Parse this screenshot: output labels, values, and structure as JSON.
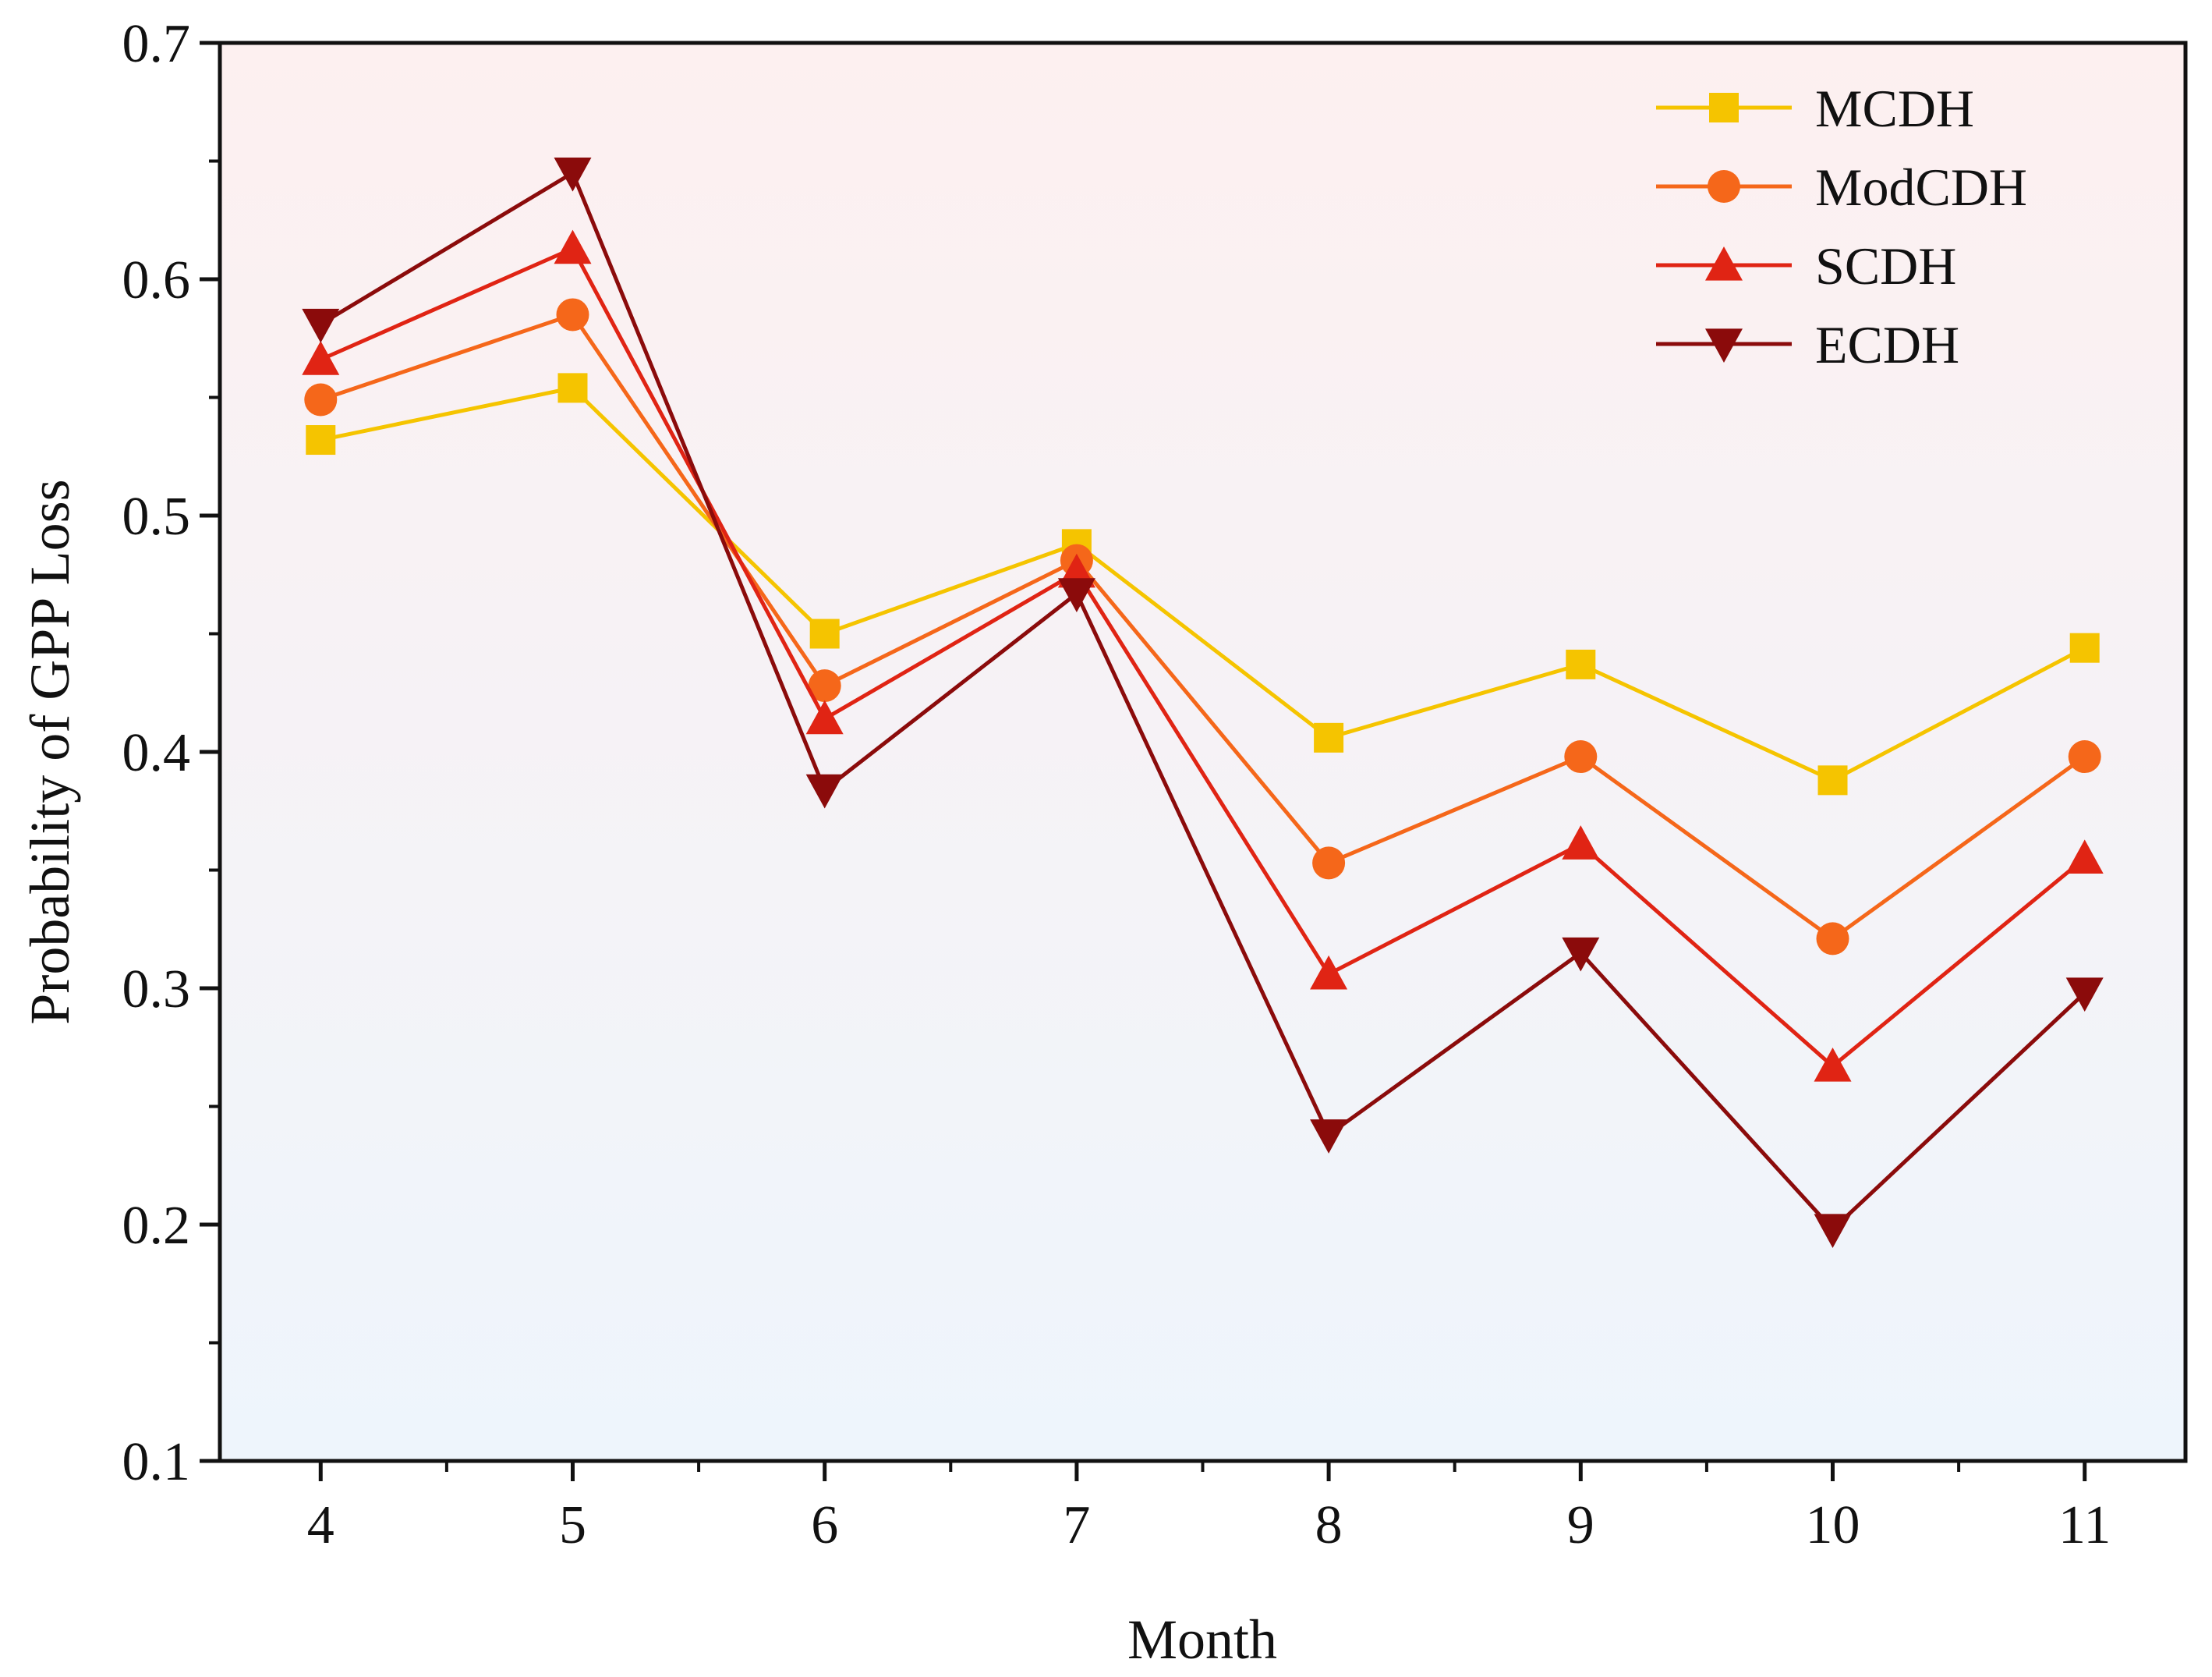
{
  "chart_data": {
    "type": "line",
    "title": "",
    "xlabel": "Month",
    "ylabel": "Probability of GPP Loss",
    "x": [
      4,
      5,
      6,
      7,
      8,
      9,
      10,
      11
    ],
    "x_tick_labels": [
      "4",
      "5",
      "6",
      "7",
      "8",
      "9",
      "10",
      "11"
    ],
    "xlim": [
      3.6,
      11.4
    ],
    "ylim": [
      0.1,
      0.7
    ],
    "y_ticks": [
      0.1,
      0.2,
      0.3,
      0.4,
      0.5,
      0.6,
      0.7
    ],
    "y_tick_labels": [
      "0.1",
      "0.2",
      "0.3",
      "0.4",
      "0.5",
      "0.6",
      "0.7"
    ],
    "grid": false,
    "legend_position": "top-right",
    "background_gradient": [
      "#fdf0f0",
      "#eef5fc"
    ],
    "series": [
      {
        "name": "MCDH",
        "color": "#f5c400",
        "marker": "square",
        "values": [
          0.532,
          0.554,
          0.45,
          0.488,
          0.406,
          0.437,
          0.388,
          0.444
        ]
      },
      {
        "name": "ModCDH",
        "color": "#f5671a",
        "marker": "circle",
        "values": [
          0.549,
          0.585,
          0.428,
          0.481,
          0.353,
          0.398,
          0.321,
          0.398
        ]
      },
      {
        "name": "SCDH",
        "color": "#e02414",
        "marker": "triangle-up",
        "values": [
          0.566,
          0.613,
          0.414,
          0.476,
          0.306,
          0.361,
          0.267,
          0.355
        ]
      },
      {
        "name": "ECDH",
        "color": "#8b0b0b",
        "marker": "triangle-down",
        "values": [
          0.581,
          0.645,
          0.384,
          0.467,
          0.238,
          0.315,
          0.198,
          0.298
        ]
      }
    ]
  }
}
